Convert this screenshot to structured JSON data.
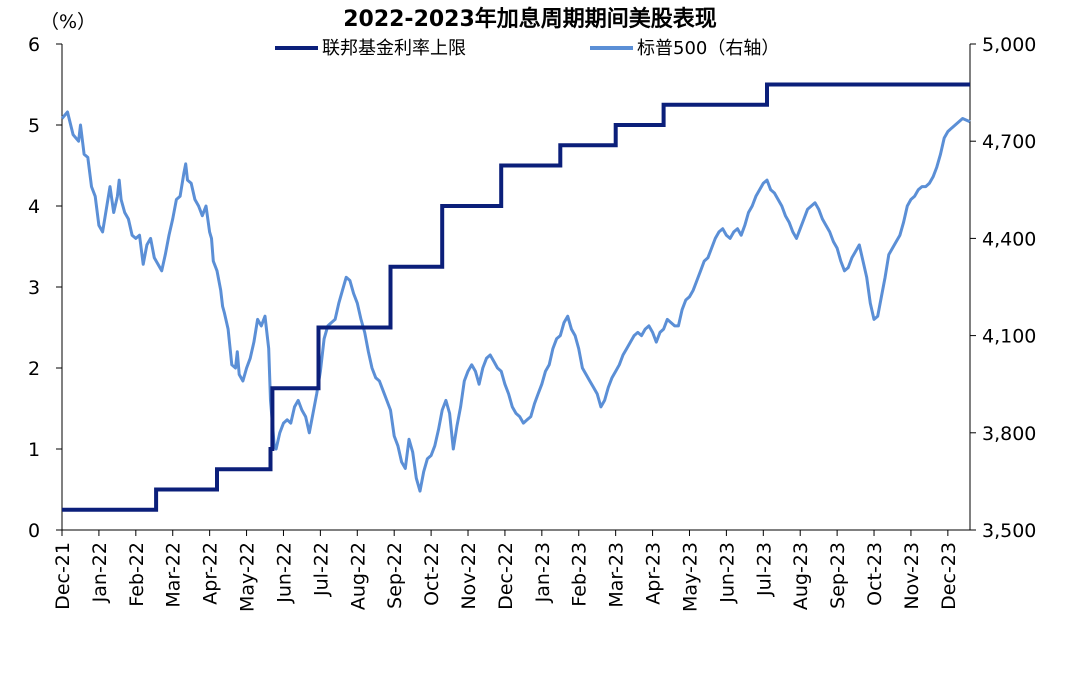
{
  "chart_data": {
    "type": "line",
    "title": "2022-2023年加息周期期间美股表现",
    "y_left_unit": "（%）",
    "y_left": {
      "ticks": [
        "0",
        "1",
        "2",
        "3",
        "4",
        "5",
        "6"
      ],
      "range": [
        0,
        6
      ]
    },
    "y_right": {
      "ticks": [
        "3,500",
        "3,800",
        "4,100",
        "4,400",
        "4,700",
        "5,000"
      ],
      "range": [
        3500,
        5000
      ]
    },
    "x_ticks": [
      "Dec-21",
      "Jan-22",
      "Feb-22",
      "Mar-22",
      "Apr-22",
      "May-22",
      "Jun-22",
      "Jul-22",
      "Aug-22",
      "Sep-22",
      "Oct-22",
      "Nov-22",
      "Dec-22",
      "Jan-23",
      "Feb-23",
      "Mar-23",
      "Apr-23",
      "May-23",
      "Jun-23",
      "Jul-23",
      "Aug-23",
      "Sep-23",
      "Oct-23",
      "Nov-23",
      "Dec-23"
    ],
    "x_range": [
      0,
      24.6
    ],
    "legend_position": "top",
    "grid": false,
    "series": [
      {
        "name": "联邦基金利率上限",
        "axis": "left",
        "color": "#0b1f7a",
        "step": true,
        "points": [
          [
            0.0,
            0.25
          ],
          [
            2.55,
            0.25
          ],
          [
            2.55,
            0.5
          ],
          [
            4.2,
            0.5
          ],
          [
            4.2,
            0.75
          ],
          [
            5.65,
            0.75
          ],
          [
            5.65,
            1.0
          ],
          [
            5.7,
            1.0
          ],
          [
            5.7,
            1.5
          ],
          [
            5.7,
            1.75
          ],
          [
            6.95,
            1.75
          ],
          [
            6.95,
            2.5
          ],
          [
            8.9,
            2.5
          ],
          [
            8.9,
            3.25
          ],
          [
            10.3,
            3.25
          ],
          [
            10.3,
            4.0
          ],
          [
            11.9,
            4.0
          ],
          [
            11.9,
            4.5
          ],
          [
            13.5,
            4.5
          ],
          [
            13.5,
            4.75
          ],
          [
            15.0,
            4.75
          ],
          [
            15.0,
            5.0
          ],
          [
            16.3,
            5.0
          ],
          [
            16.3,
            5.25
          ],
          [
            19.1,
            5.25
          ],
          [
            19.1,
            5.5
          ],
          [
            24.6,
            5.5
          ]
        ]
      },
      {
        "name": "标普500（右轴）",
        "axis": "right",
        "color": "#5b8fd6",
        "step": false,
        "points": [
          [
            0.0,
            4770
          ],
          [
            0.15,
            4790
          ],
          [
            0.3,
            4720
          ],
          [
            0.45,
            4700
          ],
          [
            0.5,
            4750
          ],
          [
            0.6,
            4660
          ],
          [
            0.7,
            4650
          ],
          [
            0.8,
            4560
          ],
          [
            0.9,
            4530
          ],
          [
            1.0,
            4440
          ],
          [
            1.1,
            4420
          ],
          [
            1.2,
            4490
          ],
          [
            1.3,
            4560
          ],
          [
            1.4,
            4480
          ],
          [
            1.5,
            4530
          ],
          [
            1.55,
            4580
          ],
          [
            1.6,
            4520
          ],
          [
            1.7,
            4480
          ],
          [
            1.8,
            4460
          ],
          [
            1.9,
            4410
          ],
          [
            2.0,
            4400
          ],
          [
            2.1,
            4410
          ],
          [
            2.2,
            4320
          ],
          [
            2.3,
            4380
          ],
          [
            2.4,
            4400
          ],
          [
            2.5,
            4340
          ],
          [
            2.6,
            4320
          ],
          [
            2.7,
            4300
          ],
          [
            2.8,
            4350
          ],
          [
            2.9,
            4410
          ],
          [
            3.0,
            4460
          ],
          [
            3.1,
            4520
          ],
          [
            3.2,
            4530
          ],
          [
            3.3,
            4600
          ],
          [
            3.35,
            4630
          ],
          [
            3.4,
            4580
          ],
          [
            3.5,
            4570
          ],
          [
            3.6,
            4520
          ],
          [
            3.7,
            4500
          ],
          [
            3.8,
            4470
          ],
          [
            3.9,
            4500
          ],
          [
            4.0,
            4420
          ],
          [
            4.05,
            4400
          ],
          [
            4.1,
            4330
          ],
          [
            4.2,
            4300
          ],
          [
            4.3,
            4240
          ],
          [
            4.35,
            4190
          ],
          [
            4.4,
            4170
          ],
          [
            4.5,
            4120
          ],
          [
            4.6,
            4010
          ],
          [
            4.7,
            4000
          ],
          [
            4.75,
            4050
          ],
          [
            4.8,
            3980
          ],
          [
            4.9,
            3960
          ],
          [
            5.0,
            4000
          ],
          [
            5.1,
            4030
          ],
          [
            5.2,
            4080
          ],
          [
            5.3,
            4150
          ],
          [
            5.4,
            4130
          ],
          [
            5.5,
            4160
          ],
          [
            5.6,
            4060
          ],
          [
            5.65,
            3900
          ],
          [
            5.7,
            3830
          ],
          [
            5.75,
            3760
          ],
          [
            5.8,
            3750
          ],
          [
            5.9,
            3800
          ],
          [
            6.0,
            3830
          ],
          [
            6.1,
            3840
          ],
          [
            6.2,
            3830
          ],
          [
            6.3,
            3880
          ],
          [
            6.4,
            3900
          ],
          [
            6.5,
            3870
          ],
          [
            6.6,
            3850
          ],
          [
            6.7,
            3800
          ],
          [
            6.8,
            3860
          ],
          [
            6.9,
            3920
          ],
          [
            7.0,
            3990
          ],
          [
            7.1,
            4090
          ],
          [
            7.2,
            4130
          ],
          [
            7.3,
            4140
          ],
          [
            7.4,
            4150
          ],
          [
            7.5,
            4200
          ],
          [
            7.6,
            4240
          ],
          [
            7.7,
            4280
          ],
          [
            7.8,
            4270
          ],
          [
            7.9,
            4230
          ],
          [
            8.0,
            4200
          ],
          [
            8.1,
            4150
          ],
          [
            8.2,
            4110
          ],
          [
            8.3,
            4050
          ],
          [
            8.4,
            4000
          ],
          [
            8.5,
            3970
          ],
          [
            8.6,
            3960
          ],
          [
            8.7,
            3930
          ],
          [
            8.8,
            3900
          ],
          [
            8.9,
            3870
          ],
          [
            9.0,
            3790
          ],
          [
            9.1,
            3760
          ],
          [
            9.2,
            3710
          ],
          [
            9.3,
            3690
          ],
          [
            9.4,
            3780
          ],
          [
            9.5,
            3740
          ],
          [
            9.6,
            3660
          ],
          [
            9.7,
            3620
          ],
          [
            9.8,
            3680
          ],
          [
            9.9,
            3720
          ],
          [
            10.0,
            3730
          ],
          [
            10.1,
            3760
          ],
          [
            10.2,
            3810
          ],
          [
            10.3,
            3870
          ],
          [
            10.4,
            3900
          ],
          [
            10.5,
            3860
          ],
          [
            10.6,
            3750
          ],
          [
            10.7,
            3820
          ],
          [
            10.8,
            3880
          ],
          [
            10.9,
            3960
          ],
          [
            11.0,
            3990
          ],
          [
            11.1,
            4010
          ],
          [
            11.2,
            3990
          ],
          [
            11.3,
            3950
          ],
          [
            11.4,
            4000
          ],
          [
            11.5,
            4030
          ],
          [
            11.6,
            4040
          ],
          [
            11.7,
            4020
          ],
          [
            11.8,
            4000
          ],
          [
            11.9,
            3990
          ],
          [
            12.0,
            3950
          ],
          [
            12.1,
            3920
          ],
          [
            12.2,
            3880
          ],
          [
            12.3,
            3860
          ],
          [
            12.4,
            3850
          ],
          [
            12.5,
            3830
          ],
          [
            12.6,
            3840
          ],
          [
            12.7,
            3850
          ],
          [
            12.8,
            3890
          ],
          [
            12.9,
            3920
          ],
          [
            13.0,
            3950
          ],
          [
            13.1,
            3990
          ],
          [
            13.2,
            4010
          ],
          [
            13.3,
            4060
          ],
          [
            13.4,
            4090
          ],
          [
            13.5,
            4100
          ],
          [
            13.6,
            4140
          ],
          [
            13.7,
            4160
          ],
          [
            13.8,
            4120
          ],
          [
            13.9,
            4100
          ],
          [
            14.0,
            4060
          ],
          [
            14.1,
            4000
          ],
          [
            14.2,
            3980
          ],
          [
            14.3,
            3960
          ],
          [
            14.4,
            3940
          ],
          [
            14.5,
            3920
          ],
          [
            14.6,
            3880
          ],
          [
            14.7,
            3900
          ],
          [
            14.8,
            3940
          ],
          [
            14.9,
            3970
          ],
          [
            15.0,
            3990
          ],
          [
            15.1,
            4010
          ],
          [
            15.2,
            4040
          ],
          [
            15.3,
            4060
          ],
          [
            15.4,
            4080
          ],
          [
            15.5,
            4100
          ],
          [
            15.6,
            4110
          ],
          [
            15.7,
            4100
          ],
          [
            15.8,
            4120
          ],
          [
            15.9,
            4130
          ],
          [
            16.0,
            4110
          ],
          [
            16.1,
            4080
          ],
          [
            16.2,
            4110
          ],
          [
            16.3,
            4120
          ],
          [
            16.4,
            4150
          ],
          [
            16.5,
            4140
          ],
          [
            16.6,
            4130
          ],
          [
            16.7,
            4130
          ],
          [
            16.8,
            4180
          ],
          [
            16.9,
            4210
          ],
          [
            17.0,
            4220
          ],
          [
            17.1,
            4240
          ],
          [
            17.2,
            4270
          ],
          [
            17.3,
            4300
          ],
          [
            17.4,
            4330
          ],
          [
            17.5,
            4340
          ],
          [
            17.6,
            4370
          ],
          [
            17.7,
            4400
          ],
          [
            17.8,
            4420
          ],
          [
            17.9,
            4430
          ],
          [
            18.0,
            4410
          ],
          [
            18.1,
            4400
          ],
          [
            18.2,
            4420
          ],
          [
            18.3,
            4430
          ],
          [
            18.4,
            4410
          ],
          [
            18.5,
            4440
          ],
          [
            18.6,
            4480
          ],
          [
            18.7,
            4500
          ],
          [
            18.8,
            4530
          ],
          [
            18.9,
            4550
          ],
          [
            19.0,
            4570
          ],
          [
            19.1,
            4580
          ],
          [
            19.2,
            4550
          ],
          [
            19.3,
            4540
          ],
          [
            19.4,
            4520
          ],
          [
            19.5,
            4500
          ],
          [
            19.6,
            4470
          ],
          [
            19.7,
            4450
          ],
          [
            19.8,
            4420
          ],
          [
            19.9,
            4400
          ],
          [
            20.0,
            4430
          ],
          [
            20.1,
            4460
          ],
          [
            20.2,
            4490
          ],
          [
            20.3,
            4500
          ],
          [
            20.4,
            4510
          ],
          [
            20.5,
            4490
          ],
          [
            20.6,
            4460
          ],
          [
            20.7,
            4440
          ],
          [
            20.8,
            4420
          ],
          [
            20.9,
            4390
          ],
          [
            21.0,
            4370
          ],
          [
            21.1,
            4330
          ],
          [
            21.2,
            4300
          ],
          [
            21.3,
            4310
          ],
          [
            21.4,
            4340
          ],
          [
            21.5,
            4360
          ],
          [
            21.6,
            4380
          ],
          [
            21.7,
            4330
          ],
          [
            21.8,
            4280
          ],
          [
            21.9,
            4200
          ],
          [
            22.0,
            4150
          ],
          [
            22.1,
            4160
          ],
          [
            22.2,
            4220
          ],
          [
            22.3,
            4280
          ],
          [
            22.4,
            4350
          ],
          [
            22.5,
            4370
          ],
          [
            22.6,
            4390
          ],
          [
            22.7,
            4410
          ],
          [
            22.8,
            4450
          ],
          [
            22.9,
            4500
          ],
          [
            23.0,
            4520
          ],
          [
            23.1,
            4530
          ],
          [
            23.2,
            4550
          ],
          [
            23.3,
            4560
          ],
          [
            23.4,
            4560
          ],
          [
            23.5,
            4570
          ],
          [
            23.6,
            4590
          ],
          [
            23.7,
            4620
          ],
          [
            23.8,
            4660
          ],
          [
            23.9,
            4710
          ],
          [
            24.0,
            4730
          ],
          [
            24.1,
            4740
          ],
          [
            24.2,
            4750
          ],
          [
            24.3,
            4760
          ],
          [
            24.4,
            4770
          ],
          [
            24.5,
            4765
          ],
          [
            24.6,
            4760
          ]
        ]
      }
    ]
  }
}
